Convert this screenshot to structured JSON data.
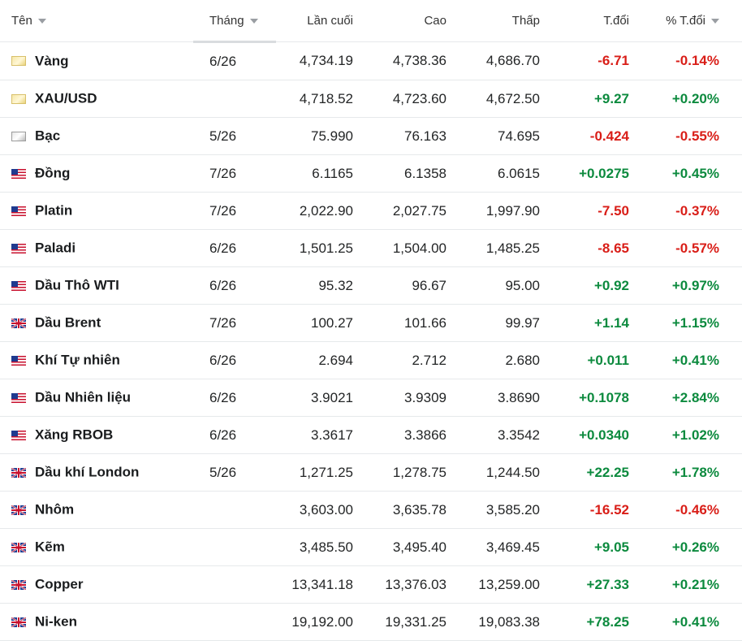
{
  "columns": {
    "name": "Tên",
    "month": "Tháng",
    "last": "Lần cuối",
    "high": "Cao",
    "low": "Thấp",
    "change": "T.đổi",
    "change_pct": "% T.đổi"
  },
  "colors": {
    "up": "#0c8a3e",
    "down": "#d91e18"
  },
  "rows": [
    {
      "name": "Vàng",
      "flag": "gold-icon",
      "month": "6/26",
      "last": "4,734.19",
      "high": "4,738.36",
      "low": "4,686.70",
      "change": "-6.71",
      "change_pct": "-0.14%",
      "dir": "down"
    },
    {
      "name": "XAU/USD",
      "flag": "gold-icon",
      "month": "",
      "last": "4,718.52",
      "high": "4,723.60",
      "low": "4,672.50",
      "change": "+9.27",
      "change_pct": "+0.20%",
      "dir": "up"
    },
    {
      "name": "Bạc",
      "flag": "silver-icon",
      "month": "5/26",
      "last": "75.990",
      "high": "76.163",
      "low": "74.695",
      "change": "-0.424",
      "change_pct": "-0.55%",
      "dir": "down"
    },
    {
      "name": "Đồng",
      "flag": "us-flag-icon",
      "month": "7/26",
      "last": "6.1165",
      "high": "6.1358",
      "low": "6.0615",
      "change": "+0.0275",
      "change_pct": "+0.45%",
      "dir": "up"
    },
    {
      "name": "Platin",
      "flag": "us-flag-icon",
      "month": "7/26",
      "last": "2,022.90",
      "high": "2,027.75",
      "low": "1,997.90",
      "change": "-7.50",
      "change_pct": "-0.37%",
      "dir": "down"
    },
    {
      "name": "Paladi",
      "flag": "us-flag-icon",
      "month": "6/26",
      "last": "1,501.25",
      "high": "1,504.00",
      "low": "1,485.25",
      "change": "-8.65",
      "change_pct": "-0.57%",
      "dir": "down"
    },
    {
      "name": "Dầu Thô WTI",
      "flag": "us-flag-icon",
      "month": "6/26",
      "last": "95.32",
      "high": "96.67",
      "low": "95.00",
      "change": "+0.92",
      "change_pct": "+0.97%",
      "dir": "up"
    },
    {
      "name": "Dầu Brent",
      "flag": "uk-flag-icon",
      "month": "7/26",
      "last": "100.27",
      "high": "101.66",
      "low": "99.97",
      "change": "+1.14",
      "change_pct": "+1.15%",
      "dir": "up"
    },
    {
      "name": "Khí Tự nhiên",
      "flag": "us-flag-icon",
      "month": "6/26",
      "last": "2.694",
      "high": "2.712",
      "low": "2.680",
      "change": "+0.011",
      "change_pct": "+0.41%",
      "dir": "up"
    },
    {
      "name": "Dầu Nhiên liệu",
      "flag": "us-flag-icon",
      "month": "6/26",
      "last": "3.9021",
      "high": "3.9309",
      "low": "3.8690",
      "change": "+0.1078",
      "change_pct": "+2.84%",
      "dir": "up"
    },
    {
      "name": "Xăng RBOB",
      "flag": "us-flag-icon",
      "month": "6/26",
      "last": "3.3617",
      "high": "3.3866",
      "low": "3.3542",
      "change": "+0.0340",
      "change_pct": "+1.02%",
      "dir": "up"
    },
    {
      "name": "Dầu khí London",
      "flag": "uk-flag-icon",
      "month": "5/26",
      "last": "1,271.25",
      "high": "1,278.75",
      "low": "1,244.50",
      "change": "+22.25",
      "change_pct": "+1.78%",
      "dir": "up"
    },
    {
      "name": "Nhôm",
      "flag": "uk-flag-icon",
      "month": "",
      "last": "3,603.00",
      "high": "3,635.78",
      "low": "3,585.20",
      "change": "-16.52",
      "change_pct": "-0.46%",
      "dir": "down"
    },
    {
      "name": "Kẽm",
      "flag": "uk-flag-icon",
      "month": "",
      "last": "3,485.50",
      "high": "3,495.40",
      "low": "3,469.45",
      "change": "+9.05",
      "change_pct": "+0.26%",
      "dir": "up"
    },
    {
      "name": "Copper",
      "flag": "uk-flag-icon",
      "month": "",
      "last": "13,341.18",
      "high": "13,376.03",
      "low": "13,259.00",
      "change": "+27.33",
      "change_pct": "+0.21%",
      "dir": "up"
    },
    {
      "name": "Ni-ken",
      "flag": "uk-flag-icon",
      "month": "",
      "last": "19,192.00",
      "high": "19,331.25",
      "low": "19,083.38",
      "change": "+78.25",
      "change_pct": "+0.41%",
      "dir": "up"
    }
  ]
}
